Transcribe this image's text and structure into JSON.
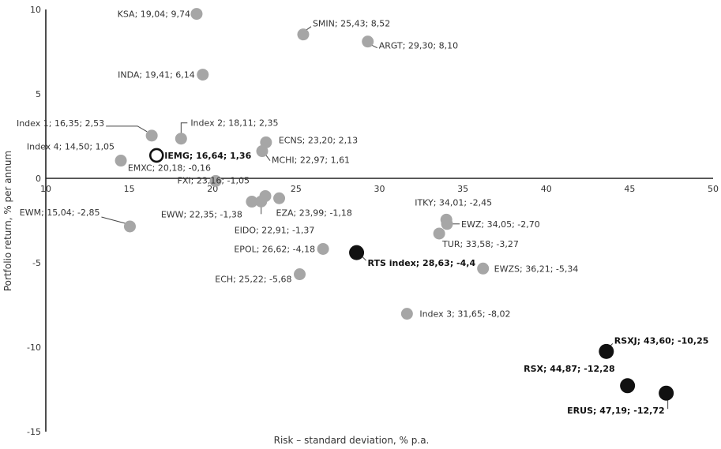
{
  "chart_data": {
    "type": "scatter",
    "xlabel": "Risk – standard deviation, % p.a.",
    "ylabel": "Portfolio return, % per annum",
    "xlim": [
      10,
      50
    ],
    "ylim": [
      -15,
      10
    ],
    "x_ticks": [
      10,
      15,
      20,
      25,
      30,
      35,
      40,
      45,
      50
    ],
    "y_ticks": [
      10,
      5,
      0,
      -5,
      -10,
      -15
    ],
    "grid": false,
    "colors": {
      "gray": "#a6a6a6",
      "black": "#111111",
      "axis": "#222222"
    },
    "points": [
      {
        "label": "KSA; 19,04; 9,74",
        "x": 19.04,
        "y": 9.74,
        "style": "gray"
      },
      {
        "label": "SMIN; 25,43; 8,52",
        "x": 25.43,
        "y": 8.52,
        "style": "gray"
      },
      {
        "label": "ARGT; 29,30; 8,10",
        "x": 29.3,
        "y": 8.1,
        "style": "gray"
      },
      {
        "label": "INDA; 19,41; 6,14",
        "x": 19.41,
        "y": 6.14,
        "style": "gray"
      },
      {
        "label": "Index 1; 16,35; 2,53",
        "x": 16.35,
        "y": 2.53,
        "style": "gray"
      },
      {
        "label": "Index 2; 18,11; 2,35",
        "x": 18.11,
        "y": 2.35,
        "style": "gray"
      },
      {
        "label": "ECNS; 23,20; 2,13",
        "x": 23.2,
        "y": 2.13,
        "style": "gray"
      },
      {
        "label": "Index 4; 14,50; 1,05",
        "x": 14.5,
        "y": 1.05,
        "style": "gray"
      },
      {
        "label": "IEMG; 16,64; 1,36",
        "x": 16.64,
        "y": 1.36,
        "style": "hollow"
      },
      {
        "label": "MCHI; 22,97; 1,61",
        "x": 22.97,
        "y": 1.61,
        "style": "gray"
      },
      {
        "label": "EMXC; 20,18; -0,16",
        "x": 20.18,
        "y": -0.16,
        "style": "gray"
      },
      {
        "label": "FXI; 23,16; -1,05",
        "x": 23.16,
        "y": -1.05,
        "style": "gray"
      },
      {
        "label": "EWW; 22,35; -1,38",
        "x": 22.35,
        "y": -1.38,
        "style": "gray"
      },
      {
        "label": "EZA; 23,99; -1,18",
        "x": 23.99,
        "y": -1.18,
        "style": "gray"
      },
      {
        "label": "EIDO; 22,91; -1,37",
        "x": 22.91,
        "y": -1.37,
        "style": "gray"
      },
      {
        "label": "EWM; 15,04; -2,85",
        "x": 15.04,
        "y": -2.85,
        "style": "gray"
      },
      {
        "label": "ITKY; 34,01; -2,45",
        "x": 34.01,
        "y": -2.45,
        "style": "gray"
      },
      {
        "label": "EWZ; 34,05; -2,70",
        "x": 34.05,
        "y": -2.7,
        "style": "gray"
      },
      {
        "label": "TUR; 33,58; -3,27",
        "x": 33.58,
        "y": -3.27,
        "style": "gray"
      },
      {
        "label": "EPOL; 26,62; -4,18",
        "x": 26.62,
        "y": -4.18,
        "style": "gray"
      },
      {
        "label": "RTS index; 28,63; -4,4",
        "x": 28.63,
        "y": -4.4,
        "style": "black"
      },
      {
        "label": "EWZS; 36,21; -5,34",
        "x": 36.21,
        "y": -5.34,
        "style": "gray"
      },
      {
        "label": "ECH; 25,22; -5,68",
        "x": 25.22,
        "y": -5.68,
        "style": "gray"
      },
      {
        "label": "Index 3; 31,65; -8,02",
        "x": 31.65,
        "y": -8.02,
        "style": "gray"
      },
      {
        "label": "RSXJ; 43,60; -10,25",
        "x": 43.6,
        "y": -10.25,
        "style": "black"
      },
      {
        "label": "RSX; 44,87; -12,28",
        "x": 44.87,
        "y": -12.28,
        "style": "black"
      },
      {
        "label": "ERUS; 47,19; -12,72",
        "x": 47.19,
        "y": -12.72,
        "style": "black"
      }
    ]
  }
}
